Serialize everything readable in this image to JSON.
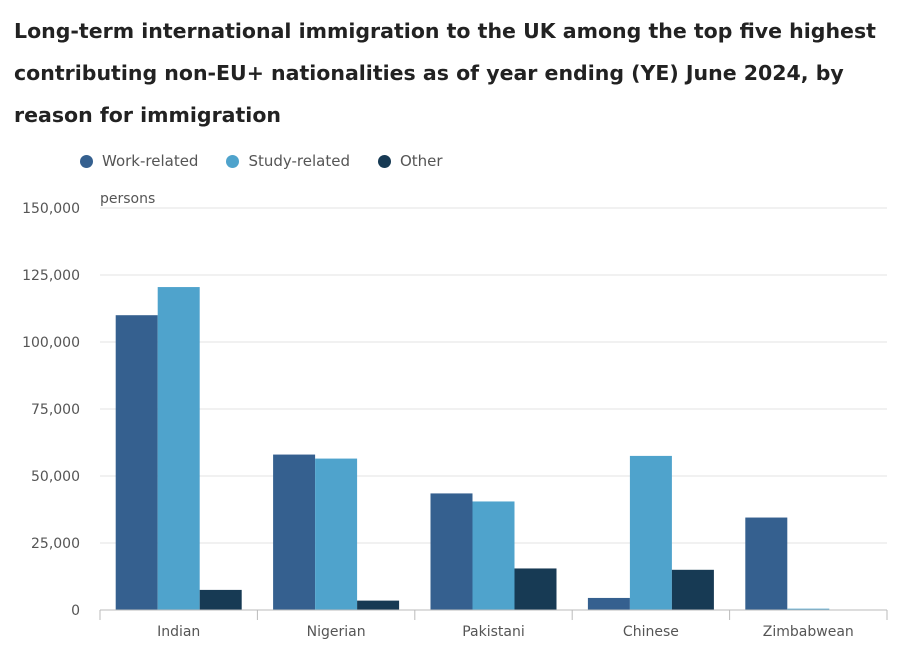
{
  "chart_data": {
    "type": "bar",
    "title": "Long-term international immigration to the UK among the top five highest contributing non-EU+ nationalities as of year ending (YE) June 2024, by reason for immigration",
    "ylabel": "persons",
    "ylim": [
      0,
      150000
    ],
    "yticks": [
      0,
      25000,
      50000,
      75000,
      100000,
      125000,
      150000
    ],
    "ytick_labels": [
      "0",
      "25,000",
      "50,000",
      "75,000",
      "100,000",
      "125,000",
      "150,000"
    ],
    "grid": true,
    "legend_position": "top-left",
    "categories": [
      "Indian",
      "Nigerian",
      "Pakistani",
      "Chinese",
      "Zimbabwean"
    ],
    "series": [
      {
        "name": "Work-related",
        "color": "#35608f",
        "values": [
          110000,
          58000,
          43500,
          4500,
          34500
        ]
      },
      {
        "name": "Study-related",
        "color": "#4fa3cc",
        "values": [
          120500,
          56500,
          40500,
          57500,
          500
        ]
      },
      {
        "name": "Other",
        "color": "#173a54",
        "values": [
          7500,
          3500,
          15500,
          15000,
          0
        ]
      }
    ]
  }
}
